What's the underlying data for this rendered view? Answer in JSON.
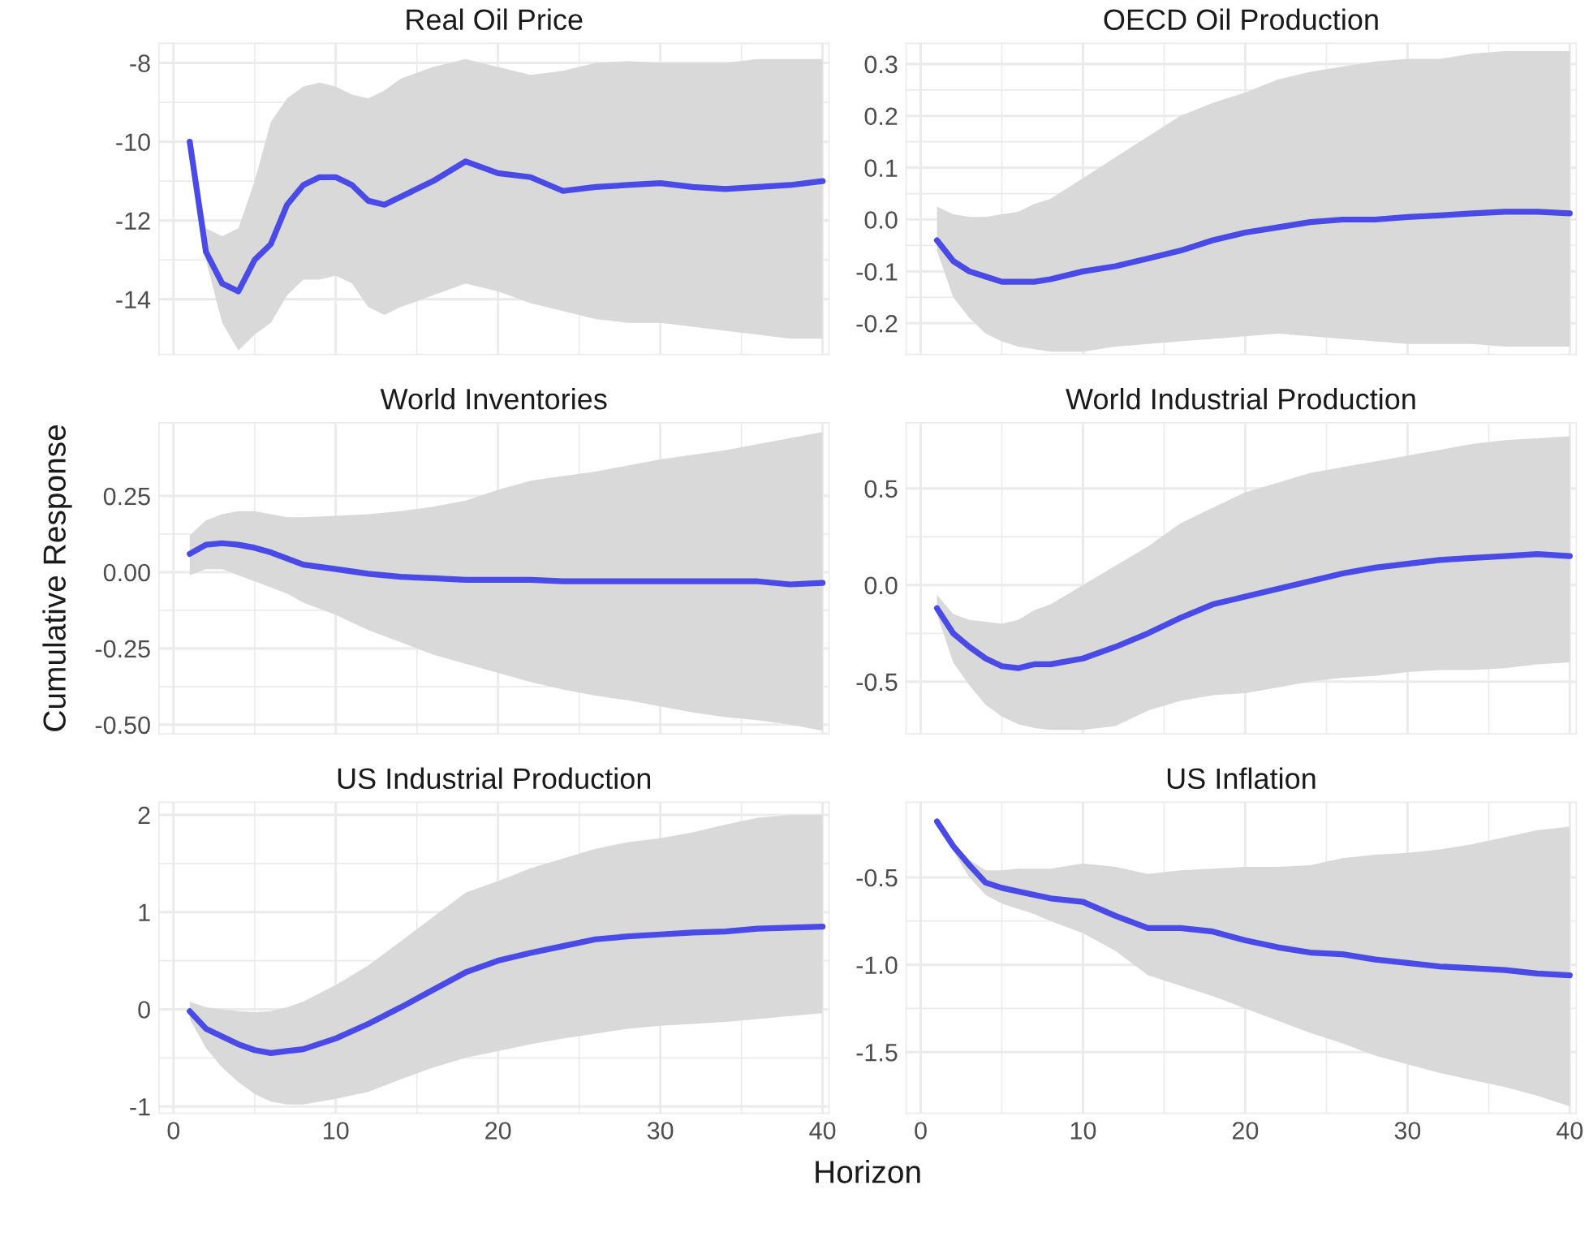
{
  "chart_data": [
    {
      "type": "line",
      "title": "Real Oil Price",
      "xlim": [
        -0.9,
        40.4
      ],
      "ylim": [
        -15.4,
        -7.5
      ],
      "xticks": [
        0,
        10,
        20,
        30,
        40
      ],
      "yticks": [
        -14,
        -12,
        -10,
        -8
      ],
      "grid": true,
      "tick_labels": "y",
      "series": [
        {
          "color": "#4a4ae6",
          "x": [
            1,
            2,
            3,
            4,
            5,
            6,
            7,
            8,
            9,
            10,
            11,
            12,
            13,
            14,
            16,
            18,
            20,
            22,
            24,
            26,
            28,
            30,
            32,
            34,
            36,
            38,
            40
          ],
          "values": [
            -10.0,
            -12.8,
            -13.6,
            -13.8,
            -13.0,
            -12.6,
            -11.6,
            -11.1,
            -10.9,
            -10.9,
            -11.1,
            -11.5,
            -11.6,
            -11.4,
            -11.0,
            -10.5,
            -10.8,
            -10.9,
            -11.25,
            -11.15,
            -11.1,
            -11.05,
            -11.15,
            -11.2,
            -11.15,
            -11.1,
            -11.0
          ],
          "upper": [
            -10.0,
            -12.2,
            -12.4,
            -12.2,
            -11.0,
            -9.5,
            -8.9,
            -8.6,
            -8.5,
            -8.6,
            -8.8,
            -8.9,
            -8.7,
            -8.4,
            -8.1,
            -7.9,
            -8.1,
            -8.3,
            -8.2,
            -8.0,
            -7.95,
            -8.0,
            -8.0,
            -8.0,
            -7.9,
            -7.9,
            -7.9
          ],
          "lower": [
            -10.0,
            -13.0,
            -14.6,
            -15.3,
            -14.9,
            -14.6,
            -13.9,
            -13.5,
            -13.5,
            -13.4,
            -13.6,
            -14.2,
            -14.4,
            -14.2,
            -13.9,
            -13.6,
            -13.8,
            -14.1,
            -14.3,
            -14.5,
            -14.6,
            -14.6,
            -14.7,
            -14.8,
            -14.9,
            -15.0,
            -15.0
          ]
        }
      ]
    },
    {
      "type": "line",
      "title": "OECD Oil Production",
      "xlim": [
        -0.9,
        40.4
      ],
      "ylim": [
        -0.26,
        0.34
      ],
      "xticks": [
        0,
        10,
        20,
        30,
        40
      ],
      "yticks": [
        {
          "value": -0.2,
          "label": "-0.2"
        },
        {
          "value": -0.1,
          "label": "-0.1"
        },
        {
          "value": 0,
          "label": "0.0"
        },
        {
          "value": 0.1,
          "label": "0.1"
        },
        {
          "value": 0.2,
          "label": "0.2"
        },
        {
          "value": 0.3,
          "label": "0.3"
        }
      ],
      "grid": true,
      "tick_labels": "y",
      "series": [
        {
          "color": "#4a4ae6",
          "x": [
            1,
            2,
            3,
            4,
            5,
            6,
            7,
            8,
            10,
            12,
            14,
            16,
            18,
            20,
            22,
            24,
            26,
            28,
            30,
            32,
            34,
            36,
            38,
            40
          ],
          "values": [
            -0.04,
            -0.08,
            -0.1,
            -0.11,
            -0.12,
            -0.12,
            -0.12,
            -0.115,
            -0.1,
            -0.09,
            -0.075,
            -0.06,
            -0.04,
            -0.025,
            -0.015,
            -0.005,
            0.0,
            0.0,
            0.005,
            0.008,
            0.012,
            0.015,
            0.015,
            0.012
          ],
          "upper": [
            0.025,
            0.01,
            0.005,
            0.005,
            0.01,
            0.015,
            0.03,
            0.04,
            0.08,
            0.12,
            0.16,
            0.2,
            0.225,
            0.245,
            0.27,
            0.285,
            0.295,
            0.305,
            0.31,
            0.31,
            0.32,
            0.325,
            0.325,
            0.325
          ],
          "lower": [
            -0.06,
            -0.15,
            -0.19,
            -0.22,
            -0.235,
            -0.245,
            -0.25,
            -0.255,
            -0.255,
            -0.245,
            -0.24,
            -0.235,
            -0.23,
            -0.225,
            -0.22,
            -0.225,
            -0.23,
            -0.235,
            -0.24,
            -0.24,
            -0.24,
            -0.245,
            -0.245,
            -0.245
          ]
        }
      ]
    },
    {
      "type": "line",
      "title": "World Inventories",
      "ylabel": "Cumulative Response",
      "xlim": [
        -0.9,
        40.4
      ],
      "ylim": [
        -0.53,
        0.49
      ],
      "xticks": [
        0,
        10,
        20,
        30,
        40
      ],
      "yticks": [
        {
          "value": -0.5,
          "label": "-0.50"
        },
        {
          "value": -0.25,
          "label": "-0.25"
        },
        {
          "value": 0,
          "label": "0.00"
        },
        {
          "value": 0.25,
          "label": "0.25"
        }
      ],
      "grid": true,
      "tick_labels": "y",
      "series": [
        {
          "color": "#4a4ae6",
          "x": [
            1,
            2,
            3,
            4,
            5,
            6,
            7,
            8,
            10,
            12,
            14,
            16,
            18,
            20,
            22,
            24,
            26,
            28,
            30,
            32,
            34,
            36,
            38,
            40
          ],
          "values": [
            0.06,
            0.09,
            0.095,
            0.09,
            0.08,
            0.065,
            0.045,
            0.025,
            0.01,
            -0.005,
            -0.015,
            -0.02,
            -0.025,
            -0.025,
            -0.025,
            -0.03,
            -0.03,
            -0.03,
            -0.03,
            -0.03,
            -0.03,
            -0.03,
            -0.04,
            -0.035
          ],
          "upper": [
            0.12,
            0.17,
            0.19,
            0.2,
            0.2,
            0.19,
            0.18,
            0.18,
            0.185,
            0.19,
            0.2,
            0.215,
            0.235,
            0.27,
            0.3,
            0.315,
            0.33,
            0.35,
            0.37,
            0.385,
            0.4,
            0.42,
            0.44,
            0.46
          ],
          "lower": [
            -0.01,
            0.01,
            0.01,
            -0.01,
            -0.03,
            -0.05,
            -0.07,
            -0.1,
            -0.14,
            -0.19,
            -0.23,
            -0.27,
            -0.3,
            -0.33,
            -0.36,
            -0.385,
            -0.405,
            -0.42,
            -0.44,
            -0.46,
            -0.475,
            -0.485,
            -0.5,
            -0.52
          ]
        }
      ]
    },
    {
      "type": "line",
      "title": "World Industrial Production",
      "xlim": [
        -0.9,
        40.4
      ],
      "ylim": [
        -0.77,
        0.84
      ],
      "xticks": [
        0,
        10,
        20,
        30,
        40
      ],
      "yticks": [
        {
          "value": -0.5,
          "label": "-0.5"
        },
        {
          "value": 0,
          "label": "0.0"
        },
        {
          "value": 0.5,
          "label": "0.5"
        }
      ],
      "grid": true,
      "tick_labels": "y",
      "series": [
        {
          "color": "#4a4ae6",
          "x": [
            1,
            2,
            3,
            4,
            5,
            6,
            7,
            8,
            10,
            12,
            14,
            16,
            18,
            20,
            22,
            24,
            26,
            28,
            30,
            32,
            34,
            36,
            38,
            40
          ],
          "values": [
            -0.12,
            -0.25,
            -0.32,
            -0.38,
            -0.42,
            -0.43,
            -0.41,
            -0.41,
            -0.38,
            -0.32,
            -0.25,
            -0.17,
            -0.1,
            -0.06,
            -0.02,
            0.02,
            0.06,
            0.09,
            0.11,
            0.13,
            0.14,
            0.15,
            0.16,
            0.15
          ],
          "upper": [
            -0.05,
            -0.15,
            -0.18,
            -0.19,
            -0.2,
            -0.18,
            -0.13,
            -0.1,
            0.0,
            0.1,
            0.2,
            0.32,
            0.4,
            0.48,
            0.53,
            0.58,
            0.61,
            0.64,
            0.67,
            0.7,
            0.73,
            0.75,
            0.76,
            0.77
          ],
          "lower": [
            -0.15,
            -0.4,
            -0.52,
            -0.62,
            -0.68,
            -0.72,
            -0.74,
            -0.75,
            -0.75,
            -0.73,
            -0.65,
            -0.6,
            -0.57,
            -0.56,
            -0.53,
            -0.5,
            -0.48,
            -0.47,
            -0.45,
            -0.44,
            -0.44,
            -0.43,
            -0.41,
            -0.4
          ]
        }
      ]
    },
    {
      "type": "line",
      "title": "US Industrial Production",
      "xlabel": "Horizon",
      "xlim": [
        -0.9,
        40.4
      ],
      "ylim": [
        -1.07,
        2.13
      ],
      "xticks": [
        0,
        10,
        20,
        30,
        40
      ],
      "yticks": [
        -1,
        0,
        1,
        2
      ],
      "grid": true,
      "series": [
        {
          "color": "#4a4ae6",
          "x": [
            1,
            2,
            3,
            4,
            5,
            6,
            7,
            8,
            10,
            12,
            14,
            16,
            18,
            20,
            22,
            24,
            26,
            28,
            30,
            32,
            34,
            36,
            38,
            40
          ],
          "values": [
            -0.02,
            -0.2,
            -0.28,
            -0.36,
            -0.42,
            -0.45,
            -0.43,
            -0.41,
            -0.3,
            -0.15,
            0.02,
            0.2,
            0.38,
            0.5,
            0.58,
            0.65,
            0.72,
            0.75,
            0.77,
            0.79,
            0.8,
            0.83,
            0.84,
            0.85
          ],
          "upper": [
            0.08,
            0.02,
            0.0,
            -0.02,
            -0.03,
            -0.02,
            0.02,
            0.08,
            0.25,
            0.45,
            0.7,
            0.95,
            1.2,
            1.32,
            1.45,
            1.55,
            1.65,
            1.72,
            1.76,
            1.82,
            1.9,
            1.97,
            2.0,
            2.0
          ],
          "lower": [
            -0.1,
            -0.4,
            -0.6,
            -0.75,
            -0.87,
            -0.95,
            -0.98,
            -0.98,
            -0.92,
            -0.85,
            -0.72,
            -0.6,
            -0.5,
            -0.43,
            -0.36,
            -0.3,
            -0.25,
            -0.2,
            -0.17,
            -0.15,
            -0.13,
            -0.1,
            -0.07,
            -0.04
          ]
        }
      ]
    },
    {
      "type": "line",
      "title": "US Inflation",
      "xlim": [
        -0.9,
        40.4
      ],
      "ylim": [
        -1.85,
        -0.07
      ],
      "xticks": [
        0,
        10,
        20,
        30,
        40
      ],
      "yticks": [
        {
          "value": -1.5,
          "label": "-1.5"
        },
        {
          "value": -1.0,
          "label": "-1.0"
        },
        {
          "value": -0.5,
          "label": "-0.5"
        }
      ],
      "grid": true,
      "series": [
        {
          "color": "#4a4ae6",
          "x": [
            1,
            2,
            3,
            4,
            5,
            6,
            7,
            8,
            10,
            12,
            14,
            16,
            18,
            20,
            22,
            24,
            26,
            28,
            30,
            32,
            34,
            36,
            38,
            40
          ],
          "values": [
            -0.18,
            -0.32,
            -0.43,
            -0.53,
            -0.56,
            -0.58,
            -0.6,
            -0.62,
            -0.64,
            -0.72,
            -0.79,
            -0.79,
            -0.81,
            -0.86,
            -0.9,
            -0.93,
            -0.94,
            -0.97,
            -0.99,
            -1.01,
            -1.02,
            -1.03,
            -1.05,
            -1.06
          ],
          "upper": [
            -0.18,
            -0.3,
            -0.4,
            -0.46,
            -0.46,
            -0.45,
            -0.45,
            -0.45,
            -0.42,
            -0.44,
            -0.48,
            -0.46,
            -0.45,
            -0.44,
            -0.44,
            -0.43,
            -0.39,
            -0.37,
            -0.36,
            -0.34,
            -0.31,
            -0.27,
            -0.23,
            -0.21
          ],
          "lower": [
            -0.18,
            -0.35,
            -0.5,
            -0.6,
            -0.65,
            -0.68,
            -0.71,
            -0.75,
            -0.82,
            -0.92,
            -1.06,
            -1.12,
            -1.18,
            -1.25,
            -1.32,
            -1.39,
            -1.45,
            -1.52,
            -1.57,
            -1.62,
            -1.66,
            -1.7,
            -1.75,
            -1.81
          ]
        }
      ]
    }
  ]
}
